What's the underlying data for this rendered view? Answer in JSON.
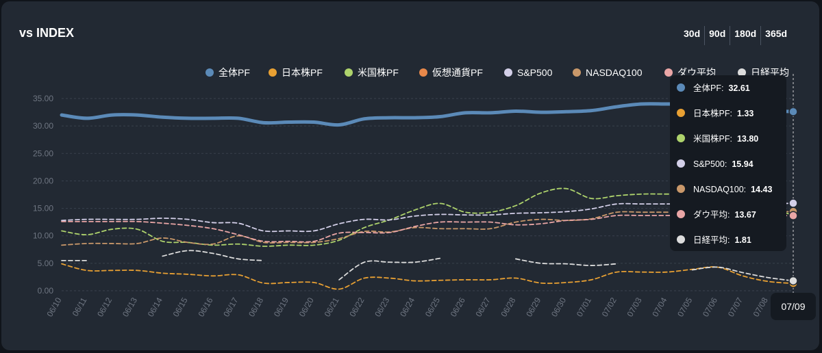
{
  "header": {
    "title": "vs INDEX",
    "ranges": [
      "30d",
      "90d",
      "180d",
      "365d"
    ]
  },
  "chart_data": {
    "type": "line",
    "title": "vs INDEX",
    "x": [
      "06/10",
      "06/11",
      "06/12",
      "06/13",
      "06/14",
      "06/15",
      "06/16",
      "06/17",
      "06/18",
      "06/19",
      "06/20",
      "06/21",
      "06/22",
      "06/23",
      "06/24",
      "06/25",
      "06/26",
      "06/27",
      "06/28",
      "06/29",
      "06/30",
      "07/01",
      "07/02",
      "07/03",
      "07/04",
      "07/05",
      "07/06",
      "07/07",
      "07/08",
      "07/09"
    ],
    "yticks": [
      "35.00",
      "30.00",
      "25.00",
      "20.00",
      "15.00",
      "10.00",
      "5.00",
      "0.00"
    ],
    "ylim": [
      0,
      35
    ],
    "grid": true,
    "legend_position": "top-right",
    "series": [
      {
        "name": "全体PF",
        "color": "#5b8ab8",
        "style": "solid",
        "values": [
          32.0,
          31.4,
          32.0,
          32.0,
          31.6,
          31.4,
          31.4,
          31.4,
          30.6,
          30.7,
          30.7,
          30.2,
          31.3,
          31.5,
          31.5,
          31.7,
          32.4,
          32.4,
          32.7,
          32.5,
          32.6,
          32.8,
          33.5,
          34.0,
          34.0,
          34.0,
          33.5,
          33.0,
          32.8,
          32.61
        ]
      },
      {
        "name": "日本株PF",
        "color": "#e8a033",
        "style": "dashed",
        "values": [
          4.9,
          3.7,
          3.7,
          3.7,
          3.2,
          3.0,
          2.7,
          2.9,
          1.4,
          1.5,
          1.5,
          0.3,
          2.3,
          2.3,
          1.8,
          1.9,
          2.0,
          2.0,
          2.3,
          1.4,
          1.5,
          2.0,
          3.4,
          3.4,
          3.4,
          3.9,
          4.3,
          2.7,
          1.7,
          1.33
        ]
      },
      {
        "name": "米国株PF",
        "color": "#aed36c",
        "style": "dashed",
        "values": [
          10.9,
          10.2,
          11.2,
          11.2,
          9.0,
          8.8,
          8.3,
          8.5,
          8.1,
          8.3,
          8.3,
          9.2,
          11.5,
          12.9,
          14.7,
          15.9,
          14.3,
          14.3,
          15.5,
          17.8,
          18.6,
          16.8,
          17.3,
          17.6,
          17.6,
          17.6,
          17.6,
          16.0,
          15.0,
          13.8
        ]
      },
      {
        "name": "仮想通貨PF",
        "color": "#e8884a",
        "style": "dashed",
        "values": [
          null,
          null,
          null,
          null,
          null,
          null,
          null,
          null,
          null,
          null,
          null,
          null,
          null,
          null,
          null,
          null,
          null,
          null,
          null,
          null,
          null,
          null,
          null,
          null,
          null,
          null,
          null,
          null,
          null,
          null
        ]
      },
      {
        "name": "S&P500",
        "color": "#d3cfe8",
        "style": "dashed",
        "values": [
          12.8,
          13.0,
          13.0,
          13.0,
          13.2,
          13.0,
          12.4,
          12.3,
          10.9,
          10.9,
          10.9,
          12.2,
          13.0,
          12.9,
          13.6,
          13.9,
          13.8,
          13.8,
          14.1,
          14.2,
          14.4,
          14.9,
          15.8,
          15.8,
          15.8,
          15.8,
          15.8,
          15.8,
          15.8,
          15.94
        ]
      },
      {
        "name": "NASDAQ100",
        "color": "#c9986a",
        "style": "dashed",
        "values": [
          8.3,
          8.6,
          8.6,
          8.6,
          9.6,
          8.8,
          8.5,
          10.0,
          8.8,
          8.8,
          8.8,
          9.5,
          10.8,
          10.7,
          11.5,
          11.3,
          11.3,
          11.3,
          12.5,
          13.0,
          12.8,
          13.1,
          14.3,
          14.3,
          14.3,
          14.3,
          14.3,
          14.3,
          14.3,
          14.43
        ]
      },
      {
        "name": "ダウ平均",
        "color": "#eaa6a6",
        "style": "dashed",
        "values": [
          12.6,
          12.6,
          12.6,
          12.6,
          12.3,
          11.9,
          11.3,
          10.2,
          9.0,
          9.0,
          9.0,
          10.5,
          10.6,
          10.6,
          11.7,
          12.5,
          12.5,
          12.5,
          12.0,
          12.2,
          12.8,
          13.0,
          13.7,
          13.7,
          13.7,
          13.7,
          13.7,
          13.7,
          13.7,
          13.67
        ]
      },
      {
        "name": "日経平均",
        "color": "#dcdcdc",
        "style": "dashed",
        "values": [
          5.5,
          5.5,
          null,
          null,
          6.3,
          7.3,
          6.8,
          5.8,
          5.5,
          null,
          null,
          2.0,
          5.2,
          5.2,
          5.2,
          5.9,
          null,
          null,
          5.8,
          5.0,
          4.9,
          4.6,
          4.9,
          null,
          null,
          3.8,
          4.3,
          3.3,
          2.4,
          1.81
        ]
      }
    ],
    "tooltip": {
      "date": "07/09",
      "entries": [
        {
          "label": "全体PF:",
          "value": "32.61",
          "color": "#5b8ab8"
        },
        {
          "label": "日本株PF:",
          "value": "1.33",
          "color": "#e8a033"
        },
        {
          "label": "米国株PF:",
          "value": "13.80",
          "color": "#aed36c"
        },
        {
          "label": "S&P500:",
          "value": "15.94",
          "color": "#d3cfe8"
        },
        {
          "label": "NASDAQ100:",
          "value": "14.43",
          "color": "#c9986a"
        },
        {
          "label": "ダウ平均:",
          "value": "13.67",
          "color": "#eaa6a6"
        },
        {
          "label": "日経平均:",
          "value": "1.81",
          "color": "#dcdcdc"
        }
      ]
    }
  }
}
